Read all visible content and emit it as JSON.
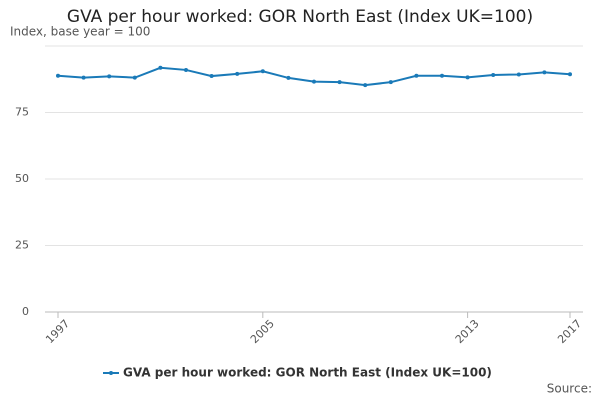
{
  "chart_data": {
    "type": "line",
    "title": "GVA per hour worked: GOR North East (Index UK=100)",
    "subtitle": "Index, base year = 100",
    "source_label": "Source:",
    "x": [
      1997,
      1998,
      1999,
      2000,
      2001,
      2002,
      2003,
      2004,
      2005,
      2006,
      2007,
      2008,
      2009,
      2010,
      2011,
      2012,
      2013,
      2014,
      2015,
      2016,
      2017
    ],
    "series": [
      {
        "name": "GVA per hour worked: GOR North East (Index UK=100)",
        "color": "#1a7ab8",
        "values": [
          88.8,
          88.1,
          88.6,
          88.1,
          91.8,
          91.0,
          88.7,
          89.5,
          90.5,
          88.0,
          86.6,
          86.4,
          85.3,
          86.4,
          88.8,
          88.8,
          88.2,
          89.1,
          89.3,
          90.1,
          89.4
        ]
      }
    ],
    "xlim": [
      1997,
      2017
    ],
    "xticks": [
      1997,
      2005,
      2013,
      2017
    ],
    "ylim": [
      0,
      100
    ],
    "yticks": [
      0,
      25,
      50,
      75
    ],
    "grid": true,
    "legend": "bottom"
  }
}
